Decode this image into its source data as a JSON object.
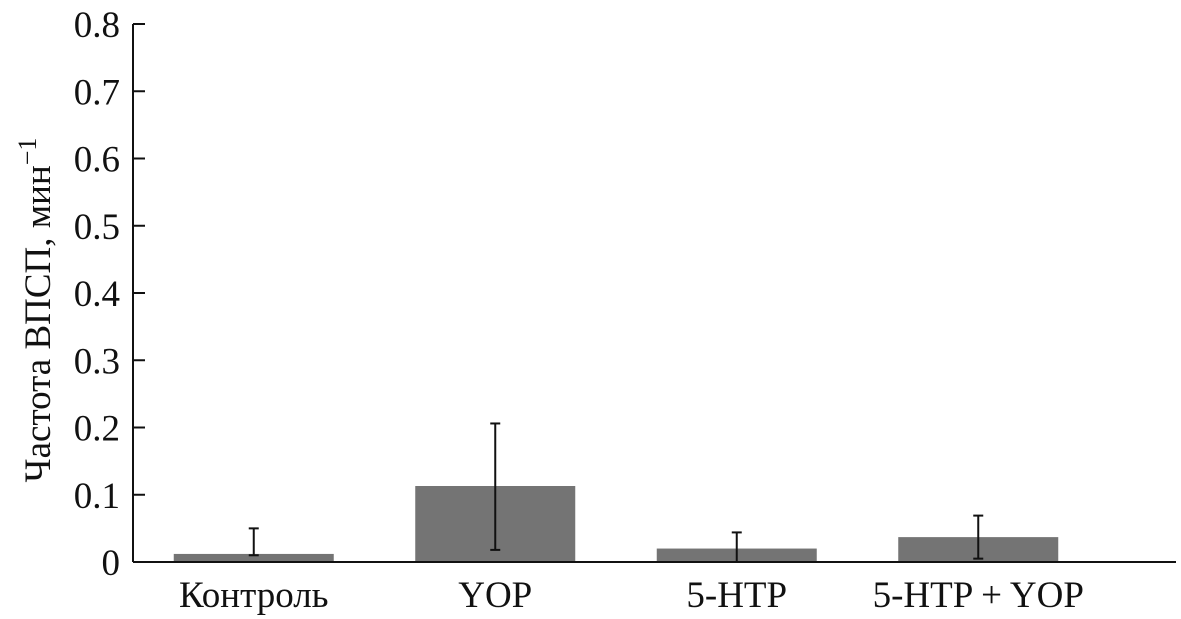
{
  "chart_data": {
    "type": "bar",
    "title": "",
    "xlabel": "",
    "ylabel": "Частота ВПСП, мин",
    "ylabel_superscript": "−1",
    "categories": [
      "Контроль",
      "YOP",
      "5-HTP",
      "5-HTP + YOP"
    ],
    "values": [
      0.012,
      0.113,
      0.02,
      0.037
    ],
    "error_low": [
      0.01,
      0.018,
      0.0,
      0.005
    ],
    "error_high": [
      0.05,
      0.206,
      0.044,
      0.069
    ],
    "ylim": [
      0,
      0.8
    ],
    "yticks": [
      0,
      0.1,
      0.2,
      0.3,
      0.4,
      0.5,
      0.6,
      0.7,
      0.8
    ],
    "ytick_labels": [
      "0",
      "0.1",
      "0.2",
      "0.3",
      "0.4",
      "0.5",
      "0.6",
      "0.7",
      "0.8"
    ],
    "grid": false,
    "bar_color": "#747474"
  }
}
